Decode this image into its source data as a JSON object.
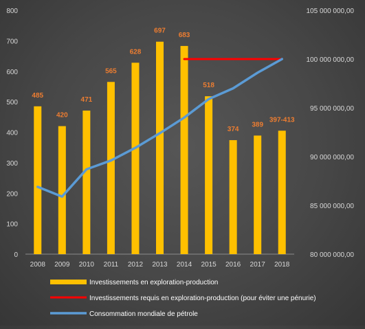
{
  "chart_data": {
    "type": "bar",
    "categories": [
      "2008",
      "2009",
      "2010",
      "2011",
      "2012",
      "2013",
      "2014",
      "2015",
      "2016",
      "2017",
      "2018"
    ],
    "series": [
      {
        "name": "Investissements en exploration-production",
        "type": "bar",
        "axis": "left",
        "color": "#FFC000",
        "values": [
          485,
          420,
          471,
          565,
          628,
          697,
          683,
          518,
          374,
          389,
          405
        ],
        "data_labels": [
          "485",
          "420",
          "471",
          "565",
          "628",
          "697",
          "683",
          "518",
          "374",
          "389",
          "397-413"
        ]
      },
      {
        "name": "Investissements requis en exploration-production (pour éviter une pénurie)",
        "type": "line",
        "axis": "right",
        "color": "#FF0000",
        "x": [
          "2014",
          "2018"
        ],
        "values": [
          100000000,
          100000000
        ]
      },
      {
        "name": "Consommation mondiale de pétrole",
        "type": "line",
        "axis": "right",
        "color": "#5B9BD5",
        "values": [
          86900000,
          85900000,
          88700000,
          89600000,
          90900000,
          92400000,
          94000000,
          95900000,
          97000000,
          98600000,
          100000000
        ]
      }
    ],
    "y_left": {
      "ylim": [
        0,
        800
      ],
      "ticks": [
        0,
        100,
        200,
        300,
        400,
        500,
        600,
        700,
        800
      ],
      "tick_labels": [
        "0",
        "100",
        "200",
        "300",
        "400",
        "500",
        "600",
        "700",
        "800"
      ]
    },
    "y_right": {
      "ylim": [
        80000000,
        105000000
      ],
      "ticks": [
        80000000,
        85000000,
        90000000,
        95000000,
        100000000,
        105000000
      ],
      "tick_labels": [
        "80 000 000,00",
        "85 000 000,00",
        "90 000 000,00",
        "95 000 000,00",
        "100 000 000,00",
        "105 000 000,00"
      ]
    },
    "grid": false,
    "legend_position": "bottom",
    "title": "",
    "xlabel": "",
    "ylabel": ""
  }
}
